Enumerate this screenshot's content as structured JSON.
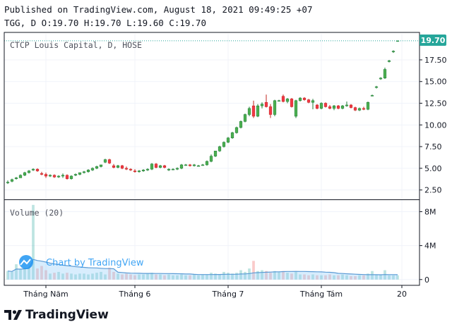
{
  "header": {
    "published": "Published on TradingView.com, August 18, 2021 09:49:25 +07",
    "ohlc_line": "TGG, D O:19.70 H:19.70 L:19.60 C:19.70"
  },
  "legend": {
    "price": "CTCP Louis Capital, D, HOSE",
    "volume": "Volume (20)"
  },
  "watermark": "Chart by TradingView",
  "footer": {
    "brand": "TradingView"
  },
  "colors": {
    "up": "#26a69a",
    "down": "#ef5350",
    "up_body": "#4caf50",
    "down_body": "#f23645",
    "ma": "#90caf9",
    "last_price": "#26a69a"
  },
  "chart_data": {
    "type": "candlestick",
    "x_tick_labels": [
      "Tháng Năm",
      "Tháng 6",
      "Tháng 7",
      "Tháng Tám",
      "20"
    ],
    "price_ticks": [
      "2.50",
      "5.00",
      "7.50",
      "10.00",
      "12.50",
      "15.00",
      "17.50"
    ],
    "price_range": [
      1.5,
      20.5
    ],
    "last_price_label": "19.70",
    "last_price": 19.7,
    "volume_ticks": [
      "0",
      "4M",
      "8M"
    ],
    "volume_tick_values": [
      0,
      4,
      8
    ],
    "volume_range": [
      -0.6,
      9.2
    ],
    "candles": [
      [
        3.4,
        3.6,
        3.2,
        3.4,
        1.0
      ],
      [
        3.5,
        3.8,
        3.4,
        3.7,
        0.9
      ],
      [
        3.8,
        4.0,
        3.7,
        3.9,
        1.8
      ],
      [
        3.9,
        4.3,
        3.9,
        4.2,
        1.2
      ],
      [
        4.2,
        4.6,
        4.1,
        4.5,
        1.4
      ],
      [
        4.5,
        4.8,
        4.4,
        4.7,
        1.5
      ],
      [
        4.8,
        5.0,
        4.7,
        4.9,
        8.8
      ],
      [
        4.9,
        5.0,
        4.6,
        4.7,
        1.3
      ],
      [
        4.4,
        4.6,
        4.2,
        4.3,
        1.6
      ],
      [
        4.3,
        4.5,
        3.9,
        4.1,
        1.1
      ],
      [
        4.1,
        4.3,
        4.0,
        4.2,
        0.7
      ],
      [
        4.2,
        4.3,
        3.9,
        4.0,
        0.8
      ],
      [
        4.0,
        4.2,
        3.9,
        4.1,
        0.9
      ],
      [
        4.1,
        4.4,
        3.9,
        4.2,
        0.7
      ],
      [
        4.2,
        4.3,
        3.7,
        3.8,
        0.8
      ],
      [
        3.8,
        4.2,
        3.7,
        4.1,
        0.7
      ],
      [
        4.2,
        4.4,
        4.1,
        4.3,
        0.6
      ],
      [
        4.3,
        4.5,
        4.2,
        4.5,
        0.7
      ],
      [
        4.5,
        4.7,
        4.4,
        4.6,
        0.7
      ],
      [
        4.6,
        4.9,
        4.5,
        4.8,
        0.6
      ],
      [
        4.8,
        5.1,
        4.7,
        5.0,
        0.7
      ],
      [
        5.0,
        5.3,
        4.9,
        5.2,
        0.8
      ],
      [
        5.2,
        5.4,
        5.1,
        5.4,
        0.9
      ],
      [
        5.7,
        6.1,
        5.6,
        6.0,
        0.6
      ],
      [
        6.0,
        6.1,
        5.5,
        5.6,
        1.4
      ],
      [
        5.3,
        5.5,
        5.0,
        5.1,
        0.9
      ],
      [
        5.1,
        5.4,
        5.0,
        5.3,
        0.7
      ],
      [
        5.3,
        5.4,
        4.9,
        5.0,
        0.6
      ],
      [
        5.0,
        5.2,
        4.8,
        4.9,
        0.7
      ],
      [
        4.9,
        5.0,
        4.7,
        4.8,
        0.6
      ],
      [
        4.7,
        4.9,
        4.5,
        4.6,
        0.5
      ],
      [
        4.6,
        4.8,
        4.5,
        4.7,
        0.6
      ],
      [
        4.7,
        4.9,
        4.6,
        4.8,
        0.6
      ],
      [
        4.8,
        5.0,
        4.7,
        4.9,
        0.7
      ],
      [
        4.9,
        5.6,
        4.8,
        5.5,
        0.8
      ],
      [
        5.5,
        5.6,
        5.0,
        5.1,
        0.6
      ],
      [
        5.1,
        5.4,
        5.0,
        5.3,
        0.6
      ],
      [
        5.3,
        5.4,
        5.0,
        5.1,
        0.5
      ],
      [
        4.8,
        5.0,
        4.7,
        4.9,
        0.6
      ],
      [
        4.9,
        5.0,
        4.8,
        4.9,
        0.5
      ],
      [
        4.9,
        5.1,
        4.8,
        5.0,
        0.5
      ],
      [
        5.0,
        5.5,
        4.9,
        5.4,
        0.6
      ],
      [
        5.4,
        5.5,
        5.3,
        5.4,
        0.5
      ],
      [
        5.4,
        5.5,
        5.2,
        5.3,
        0.5
      ],
      [
        5.3,
        5.5,
        5.2,
        5.4,
        0.6
      ],
      [
        5.3,
        5.4,
        5.2,
        5.3,
        0.5
      ],
      [
        5.4,
        5.5,
        5.3,
        5.4,
        0.6
      ],
      [
        5.4,
        5.9,
        5.3,
        5.8,
        0.6
      ],
      [
        5.8,
        6.6,
        5.7,
        6.4,
        0.8
      ],
      [
        6.4,
        7.0,
        6.3,
        7.0,
        0.7
      ],
      [
        7.0,
        7.6,
        6.9,
        7.5,
        0.6
      ],
      [
        7.5,
        8.1,
        7.4,
        8.0,
        0.9
      ],
      [
        8.0,
        8.6,
        7.9,
        8.5,
        0.8
      ],
      [
        8.5,
        9.2,
        8.4,
        9.1,
        0.7
      ],
      [
        9.1,
        9.8,
        9.0,
        9.7,
        0.8
      ],
      [
        9.7,
        10.5,
        9.6,
        10.4,
        1.1
      ],
      [
        10.4,
        11.3,
        10.3,
        11.2,
        0.9
      ],
      [
        11.2,
        12.1,
        11.0,
        11.9,
        1.3
      ],
      [
        12.2,
        12.8,
        10.8,
        11.0,
        2.2
      ],
      [
        11.0,
        12.4,
        10.9,
        12.2,
        1.0
      ],
      [
        12.2,
        12.6,
        11.9,
        12.4,
        1.1
      ],
      [
        12.6,
        13.5,
        12.0,
        12.1,
        1.0
      ],
      [
        12.1,
        12.4,
        10.8,
        11.2,
        0.8
      ],
      [
        11.2,
        12.9,
        11.0,
        12.8,
        1.0
      ],
      [
        12.8,
        12.9,
        12.7,
        12.8,
        0.9
      ],
      [
        13.3,
        13.5,
        12.6,
        12.7,
        1.0
      ],
      [
        12.7,
        13.1,
        12.5,
        13.0,
        0.8
      ],
      [
        13.0,
        13.1,
        12.0,
        12.1,
        0.7
      ],
      [
        11.0,
        12.9,
        10.8,
        12.8,
        0.9
      ],
      [
        12.8,
        13.2,
        12.7,
        13.1,
        0.6
      ],
      [
        13.1,
        13.2,
        12.8,
        12.9,
        0.6
      ],
      [
        12.9,
        13.0,
        12.5,
        12.6,
        0.5
      ],
      [
        12.6,
        13.0,
        11.8,
        12.8,
        0.6
      ],
      [
        12.3,
        12.4,
        11.8,
        11.9,
        0.5
      ],
      [
        11.9,
        12.6,
        11.8,
        12.5,
        0.5
      ],
      [
        12.5,
        12.6,
        12.0,
        12.1,
        0.5
      ],
      [
        12.1,
        12.3,
        11.8,
        11.9,
        0.6
      ],
      [
        11.9,
        12.3,
        11.7,
        12.2,
        0.5
      ],
      [
        12.2,
        12.3,
        11.8,
        11.9,
        0.5
      ],
      [
        11.9,
        12.3,
        11.8,
        12.2,
        0.6
      ],
      [
        12.2,
        12.7,
        12.1,
        12.3,
        0.5
      ],
      [
        12.3,
        12.4,
        11.9,
        12.0,
        0.4
      ],
      [
        12.0,
        12.1,
        11.6,
        11.7,
        0.4
      ],
      [
        11.7,
        12.0,
        11.6,
        11.9,
        0.5
      ],
      [
        11.9,
        12.1,
        11.7,
        11.8,
        0.5
      ],
      [
        11.8,
        12.7,
        11.7,
        12.6,
        0.7
      ],
      [
        13.4,
        13.5,
        13.3,
        13.4,
        1.0
      ],
      [
        14.4,
        14.5,
        14.2,
        14.4,
        0.6
      ],
      [
        15.3,
        15.5,
        15.2,
        15.4,
        0.6
      ],
      [
        15.4,
        16.6,
        15.3,
        16.4,
        1.1
      ],
      [
        17.3,
        17.5,
        17.2,
        17.4,
        0.5
      ],
      [
        18.5,
        18.6,
        18.3,
        18.5,
        0.5
      ],
      [
        19.7,
        19.7,
        19.6,
        19.7,
        0.5
      ]
    ]
  }
}
